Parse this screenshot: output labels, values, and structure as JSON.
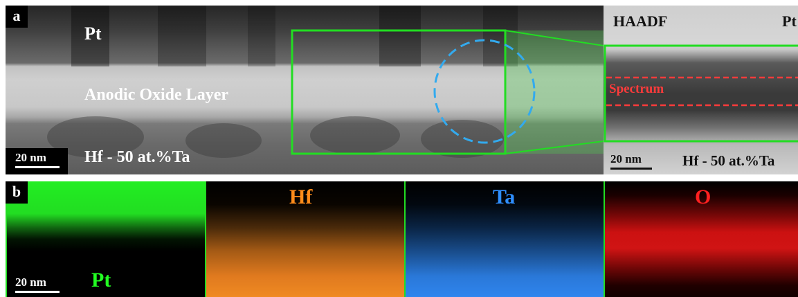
{
  "panel_a": {
    "label": "a",
    "pt_label": "Pt",
    "oxide_label": "Anodic Oxide Layer",
    "substrate_label": "Hf - 50 at.%Ta",
    "scale_label": "20 nm",
    "colors": {
      "zoom_box": "#22dd22",
      "circle": "#33aaee"
    }
  },
  "haadf": {
    "title": "HAADF",
    "pt_label": "Pt",
    "spectrum_label": "Spectrum",
    "scale_label": "20 nm",
    "substrate_label": "Hf - 50 at.%Ta",
    "colors": {
      "box": "#22dd22",
      "spectrum": "#ff3b3b"
    }
  },
  "panel_b": {
    "label": "b",
    "scale_label": "20 nm",
    "maps": [
      {
        "element": "Pt",
        "color": "#22ff22"
      },
      {
        "element": "Hf",
        "color": "#ff8c1a"
      },
      {
        "element": "Ta",
        "color": "#2f8fff"
      },
      {
        "element": "O",
        "color": "#ff2020"
      }
    ]
  }
}
